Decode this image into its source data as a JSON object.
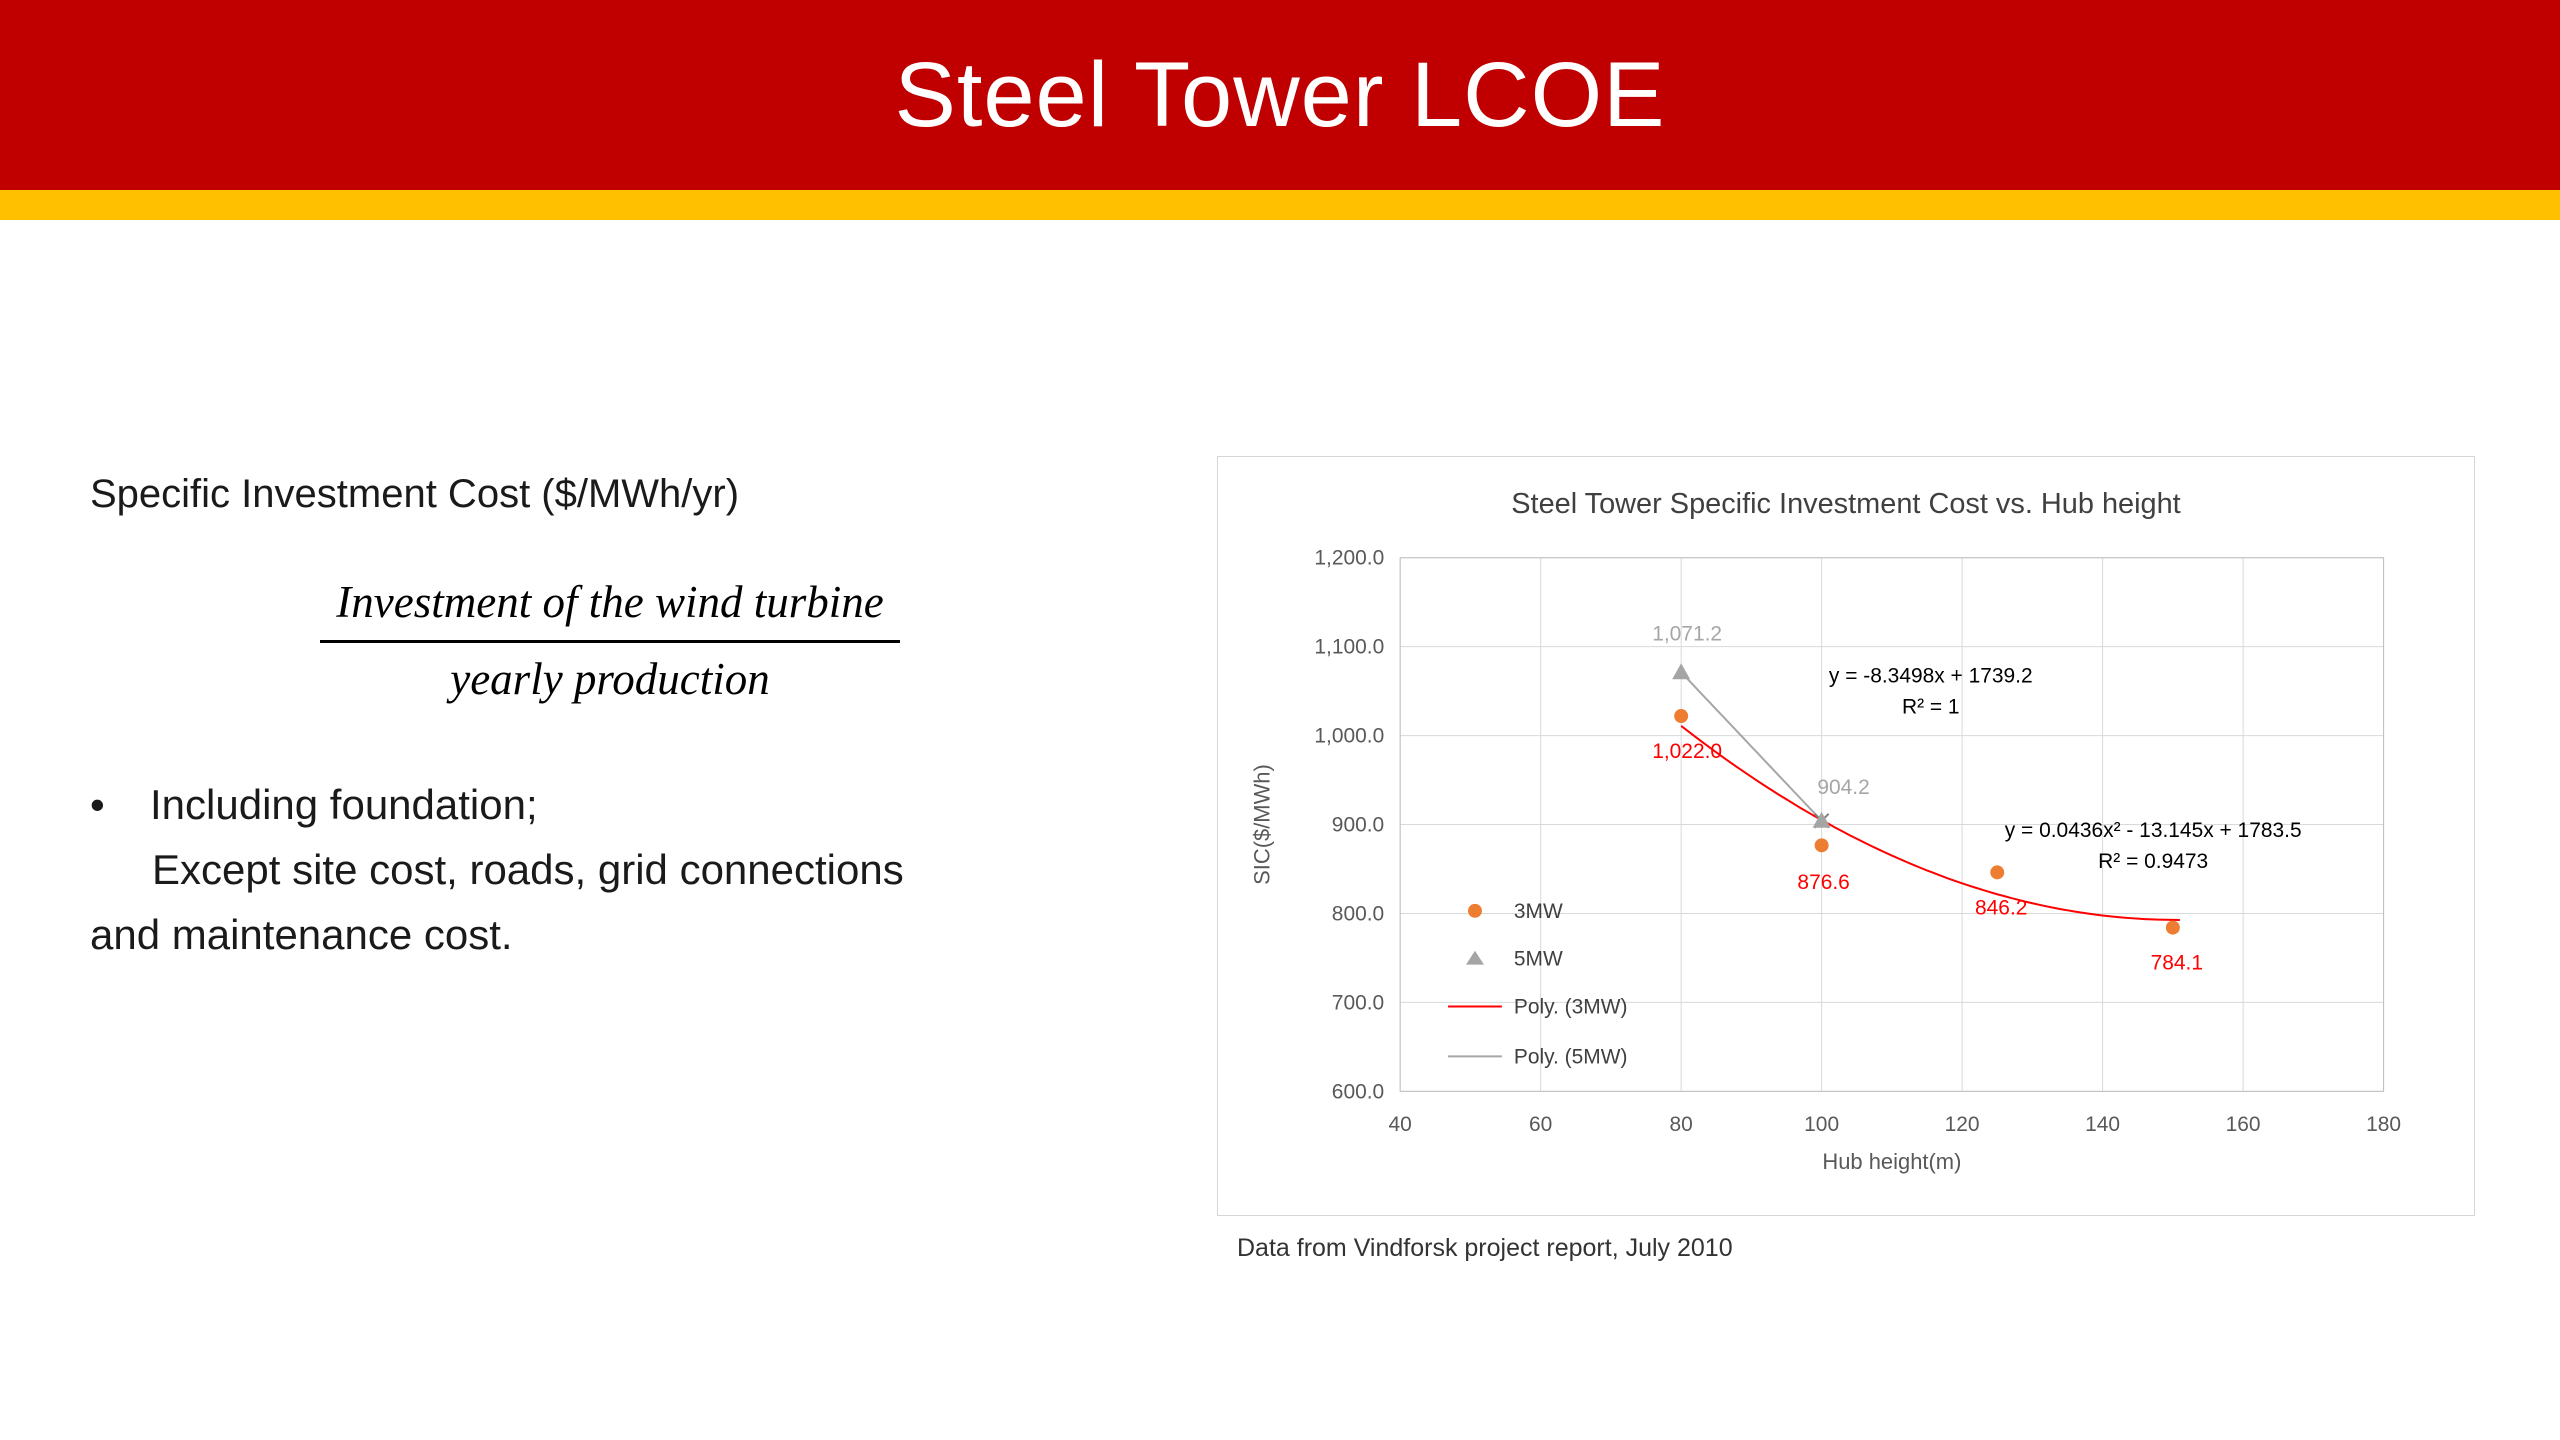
{
  "colors": {
    "banner_red": "#C00000",
    "stripe_yellow": "#FFC000",
    "series_3mw_orange": "#ED7D31",
    "series_5mw_gray": "#A5A5A5",
    "trend_3mw_red": "#FF0000",
    "trend_5mw_gray": "#A6A6A6"
  },
  "slide": {
    "title": "Steel Tower LCOE",
    "heading": "Specific Investment Cost ($/MWh/yr)",
    "formula": {
      "numerator": "Investment of the wind turbine",
      "denominator": "yearly production"
    },
    "bullet_glyph": "•",
    "bullet_lines": [
      "Including foundation;",
      "Except site cost, roads, grid connections",
      "and maintenance cost."
    ],
    "caption": "Data from Vindforsk project report, July 2010"
  },
  "chart_data": {
    "type": "scatter",
    "title": "Steel Tower Specific Investment Cost vs. Hub height",
    "xlabel": "Hub height(m)",
    "ylabel": "SIC($/MWh)",
    "xlim": [
      40,
      180
    ],
    "ylim": [
      600,
      1200
    ],
    "grid": true,
    "legend_position": "inside lower-left",
    "x_ticks": [
      {
        "v": 40,
        "label": "40"
      },
      {
        "v": 60,
        "label": "60"
      },
      {
        "v": 80,
        "label": "80"
      },
      {
        "v": 100,
        "label": "100"
      },
      {
        "v": 120,
        "label": "120"
      },
      {
        "v": 140,
        "label": "140"
      },
      {
        "v": 160,
        "label": "160"
      },
      {
        "v": 180,
        "label": "180"
      }
    ],
    "y_ticks": [
      {
        "v": 1200,
        "label": "1,200.0"
      },
      {
        "v": 1100,
        "label": "1,100.0"
      },
      {
        "v": 1000,
        "label": "1,000.0"
      },
      {
        "v": 900,
        "label": "900.0"
      },
      {
        "v": 800,
        "label": "800.0"
      },
      {
        "v": 700,
        "label": "700.0"
      },
      {
        "v": 600,
        "label": "600.0"
      }
    ],
    "series": [
      {
        "name": "3MW",
        "marker": "circle",
        "color": "#ED7D31",
        "label_color": "#FF0000",
        "points": [
          {
            "x": 80,
            "y": 1022.0,
            "label": "1,022.0",
            "dx": 6,
            "dy": 42
          },
          {
            "x": 100,
            "y": 876.6,
            "label": "876.6",
            "dx": 2,
            "dy": 44
          },
          {
            "x": 125,
            "y": 846.2,
            "label": "846.2",
            "dx": 4,
            "dy": 42
          },
          {
            "x": 150,
            "y": 784.1,
            "label": "784.1",
            "dx": 4,
            "dy": 42
          }
        ]
      },
      {
        "name": "5MW",
        "marker": "triangle",
        "color": "#A5A5A5",
        "label_color": "#A6A6A6",
        "points": [
          {
            "x": 80,
            "y": 1071.2,
            "label": "1,071.2",
            "dx": 6,
            "dy": -32
          },
          {
            "x": 100,
            "y": 904.2,
            "label": "904.2",
            "dx": 22,
            "dy": -27
          }
        ]
      }
    ],
    "trendlines": [
      {
        "name": "Poly. (3MW)",
        "color": "#FF0000",
        "coeffs": [
          0.0436,
          -13.145,
          1783.5
        ],
        "x_range": [
          80,
          151
        ],
        "equation": "y = 0.0436x² - 13.145x + 1783.5",
        "r2": "R² = 0.9473",
        "end_marker": false
      },
      {
        "name": "Poly. (5MW)",
        "color": "#A6A6A6",
        "coeffs": [
          0,
          -8.3498,
          1739.2
        ],
        "x_range": [
          80,
          100
        ],
        "equation": "y = -8.3498x + 1739.2",
        "r2": "R² = 1",
        "end_marker": true
      }
    ]
  }
}
